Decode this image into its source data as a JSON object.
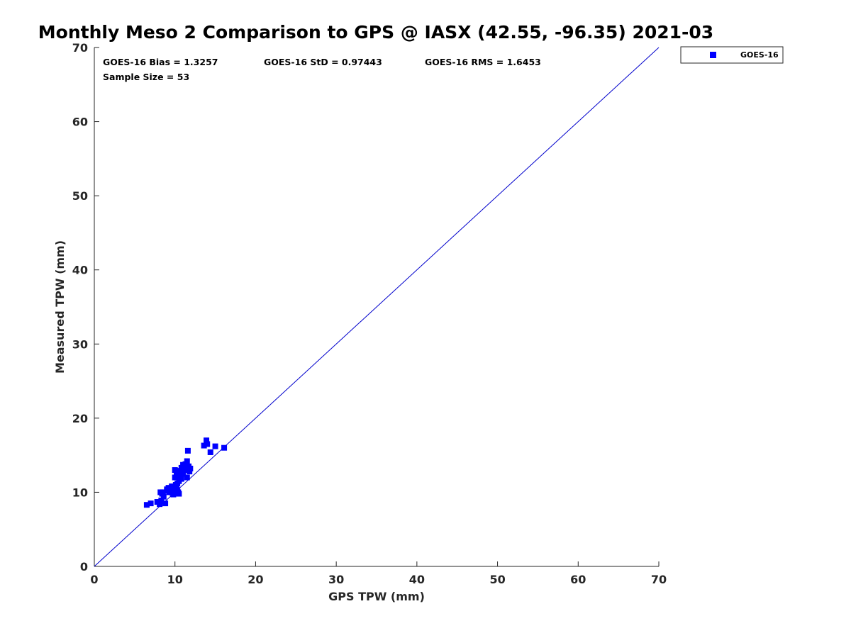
{
  "chart_data": {
    "type": "scatter",
    "title": "Monthly Meso 2 Comparison to GPS @ IASX (42.55, -96.35) 2021-03",
    "xlabel": "GPS TPW (mm)",
    "ylabel": "Measured TPW (mm)",
    "xlim": [
      0,
      70
    ],
    "ylim": [
      0,
      70
    ],
    "xticks": [
      0,
      10,
      20,
      30,
      40,
      50,
      60,
      70
    ],
    "yticks": [
      0,
      10,
      20,
      30,
      40,
      50,
      60,
      70
    ],
    "grid": false,
    "legend_placement": "outside-top-right",
    "reference_line": {
      "from": [
        0,
        0
      ],
      "to": [
        70,
        70
      ],
      "color": "#0000cc"
    },
    "stats": [
      "GOES-16 Bias = 1.3257",
      "GOES-16 StD = 0.97443",
      "GOES-16 RMS = 1.6453",
      "Sample Size = 53"
    ],
    "series": [
      {
        "name": "GOES-16",
        "color": "#0000ff",
        "marker": "square",
        "points": [
          [
            6.5,
            8.3
          ],
          [
            7.0,
            8.5
          ],
          [
            7.8,
            8.7
          ],
          [
            8.1,
            8.4
          ],
          [
            8.3,
            8.9
          ],
          [
            8.4,
            9.8
          ],
          [
            8.6,
            9.4
          ],
          [
            8.8,
            8.5
          ],
          [
            8.5,
            10.0
          ],
          [
            9.0,
            10.4
          ],
          [
            9.3,
            10.0
          ],
          [
            9.5,
            10.3
          ],
          [
            9.6,
            10.8
          ],
          [
            9.8,
            9.7
          ],
          [
            9.9,
            10.2
          ],
          [
            10.0,
            10.5
          ],
          [
            10.1,
            9.9
          ],
          [
            10.2,
            10.8
          ],
          [
            10.3,
            11.2
          ],
          [
            10.4,
            10.0
          ],
          [
            10.5,
            9.8
          ],
          [
            10.5,
            11.5
          ],
          [
            10.6,
            12.0
          ],
          [
            10.8,
            11.8
          ],
          [
            11.0,
            12.5
          ],
          [
            11.2,
            13.0
          ],
          [
            11.5,
            12.0
          ],
          [
            11.5,
            14.2
          ],
          [
            11.7,
            13.5
          ],
          [
            11.8,
            12.8
          ],
          [
            11.9,
            13.2
          ],
          [
            10.0,
            12.0
          ],
          [
            10.2,
            12.5
          ],
          [
            10.0,
            13.0
          ],
          [
            10.4,
            12.9
          ],
          [
            10.8,
            13.3
          ],
          [
            11.0,
            13.7
          ],
          [
            10.6,
            12.8
          ],
          [
            11.6,
            15.6
          ],
          [
            13.6,
            16.3
          ],
          [
            13.9,
            17.0
          ],
          [
            14.0,
            16.5
          ],
          [
            14.4,
            15.4
          ],
          [
            15.0,
            16.2
          ],
          [
            16.1,
            16.0
          ],
          [
            9.2,
            10.6
          ],
          [
            9.7,
            9.9
          ],
          [
            10.3,
            10.3
          ],
          [
            10.1,
            11.0
          ],
          [
            8.2,
            10.0
          ],
          [
            9.0,
            10.2
          ],
          [
            10.7,
            12.2
          ],
          [
            11.3,
            13.8
          ]
        ]
      }
    ]
  }
}
